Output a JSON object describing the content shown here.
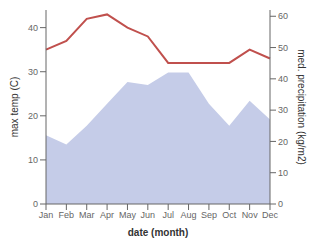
{
  "chart_data": {
    "type": "line",
    "xlabel": "date (month)",
    "ylabel": "max temp (C)",
    "y2label": "med. precipitation (kg/m2)",
    "categories": [
      "Jan",
      "Feb",
      "Mar",
      "Apr",
      "May",
      "Jun",
      "Jul",
      "Aug",
      "Sep",
      "Oct",
      "Nov",
      "Dec"
    ],
    "series": [
      {
        "type": "area",
        "color": "#c5cce8",
        "axis": "y2",
        "values": [
          22,
          19,
          25,
          32,
          39,
          38,
          42,
          42,
          32,
          25,
          33,
          27
        ]
      },
      {
        "type": "line",
        "color": "#c0504d",
        "values": [
          35,
          37,
          42,
          43,
          40,
          38,
          32,
          32,
          32,
          32,
          35,
          33
        ]
      }
    ],
    "ylim": [
      0,
      44
    ],
    "yticks": [
      0,
      10,
      20,
      30,
      40
    ],
    "y2lim": [
      0,
      62
    ],
    "y2ticks": [
      0,
      10,
      20,
      30,
      40,
      50,
      60
    ],
    "grid": false
  }
}
